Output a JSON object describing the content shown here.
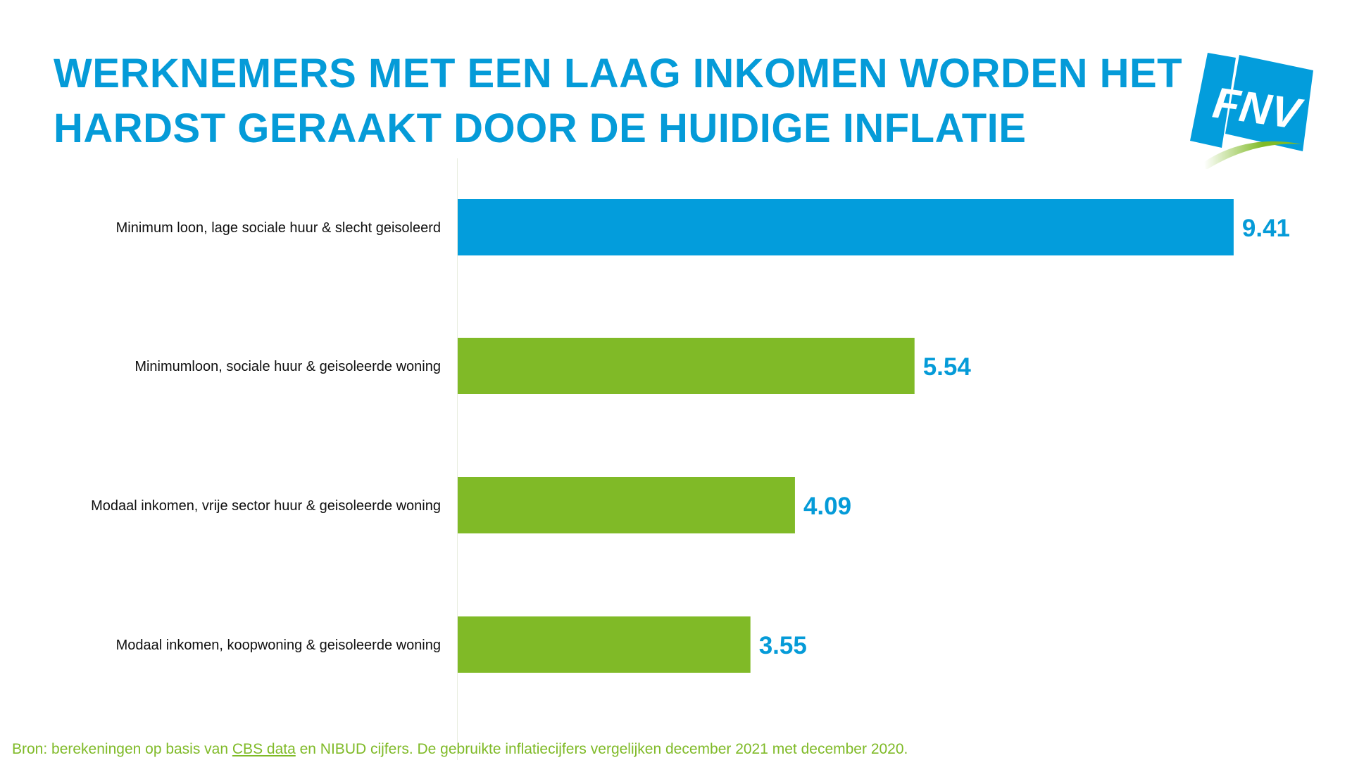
{
  "title": [
    "WERKNEMERS MET EEN LAAG INKOMEN WORDEN HET",
    "HARDST GERAAKT DOOR DE HUIDIGE INFLATIE"
  ],
  "logo": {
    "text": "FNV"
  },
  "chart_data": {
    "type": "bar",
    "orientation": "horizontal",
    "categories": [
      "Minimum loon, lage sociale huur & slecht geisoleerd",
      "Minimumloon, sociale huur & geisoleerde woning",
      "Modaal inkomen, vrije sector huur & geisoleerde woning",
      "Modaal inkomen, koopwoning & geisoleerde woning"
    ],
    "values": [
      9.41,
      5.54,
      4.09,
      3.55
    ],
    "data_labels": [
      "9.41",
      "5.54",
      "4.09",
      "3.55"
    ],
    "bar_colors": [
      "#039ddc",
      "#80ba27",
      "#80ba27",
      "#80ba27"
    ],
    "label_color": "#059bd8",
    "xlim": [
      0,
      10
    ],
    "grid": false
  },
  "footer": {
    "prefix": "Bron: berekeningen op basis van ",
    "link": "CBS data",
    "suffix": " en NIBUD cijfers. De gebruikte inflatiecijfers vergelijken december 2021 met december 2020."
  }
}
